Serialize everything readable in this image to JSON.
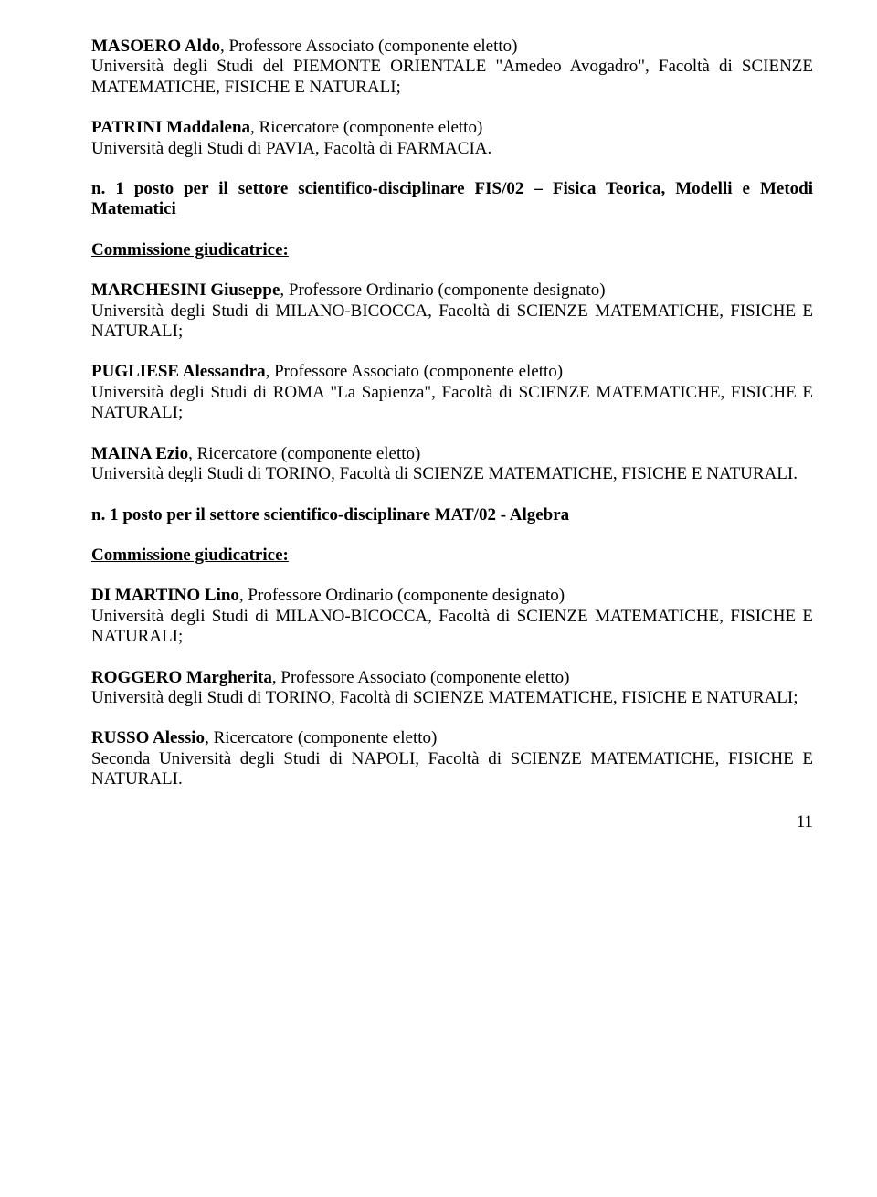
{
  "entries": [
    {
      "nameRole": "MASOERO Aldo",
      "nameRest": ", Professore Associato (componente eletto)",
      "affil": "Università degli Studi del PIEMONTE ORIENTALE \"Amedeo Avogadro\", Facoltà di SCIENZE MATEMATICHE, FISICHE E NATURALI;"
    },
    {
      "nameRole": "PATRINI Maddalena",
      "nameRest": ", Ricercatore (componente eletto)",
      "affil": "Università degli Studi di PAVIA, Facoltà di FARMACIA."
    }
  ],
  "sector1": {
    "heading": "n. 1 posto per il settore scientifico-disciplinare FIS/02 – Fisica Teorica, Modelli e Metodi Matematici",
    "commissionLabel": "Commissione giudicatrice:",
    "members": [
      {
        "nameRole": "MARCHESINI Giuseppe",
        "nameRest": ", Professore Ordinario (componente designato)",
        "affil": "Università degli Studi di MILANO-BICOCCA, Facoltà di SCIENZE MATEMATICHE, FISICHE E NATURALI;"
      },
      {
        "nameRole": "PUGLIESE Alessandra",
        "nameRest": ", Professore Associato (componente eletto)",
        "affil": "Università degli Studi di ROMA \"La Sapienza\", Facoltà di SCIENZE MATEMATICHE, FISICHE E NATURALI;"
      },
      {
        "nameRole": "MAINA Ezio",
        "nameRest": ", Ricercatore (componente eletto)",
        "affil": "Università degli Studi di TORINO, Facoltà di SCIENZE MATEMATICHE, FISICHE E NATURALI."
      }
    ]
  },
  "sector2": {
    "heading": "n. 1 posto per il settore scientifico-disciplinare MAT/02 - Algebra",
    "commissionLabel": "Commissione giudicatrice:",
    "members": [
      {
        "nameRole": "DI MARTINO Lino",
        "nameRest": ", Professore Ordinario (componente designato)",
        "affil": "Università degli Studi di MILANO-BICOCCA, Facoltà di SCIENZE MATEMATICHE, FISICHE E NATURALI;"
      },
      {
        "nameRole": "ROGGERO Margherita",
        "nameRest": ", Professore Associato (componente eletto)",
        "affil": "Università degli Studi di TORINO, Facoltà di SCIENZE MATEMATICHE, FISICHE E NATURALI;"
      },
      {
        "nameRole": "RUSSO Alessio",
        "nameRest": ", Ricercatore (componente eletto)",
        "affil": "Seconda Università degli Studi di NAPOLI, Facoltà di SCIENZE MATEMATICHE, FISICHE E NATURALI."
      }
    ]
  },
  "pageNumber": "11"
}
